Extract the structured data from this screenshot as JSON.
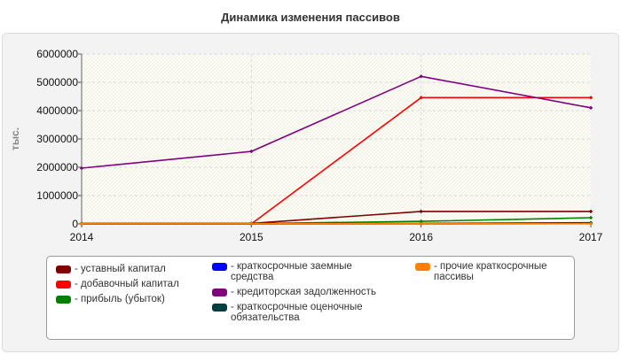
{
  "chart_data": {
    "type": "line",
    "title": "Динамика изменения пассивов",
    "ylabel": "тыс.",
    "xlabel": "",
    "x": [
      "2014",
      "2015",
      "2016",
      "2017"
    ],
    "y_ticks": [
      "0",
      "1000000",
      "2000000",
      "3000000",
      "4000000",
      "5000000",
      "6000000"
    ],
    "ylim": [
      0,
      6000000
    ],
    "grid": true,
    "legend_position": "bottom",
    "series": [
      {
        "name": "- уставный капитал",
        "color": "#800000",
        "values": [
          20000,
          20000,
          440000,
          440000
        ]
      },
      {
        "name": "- добавочный капитал",
        "color": "#ff0000",
        "values": [
          0,
          0,
          4460000,
          4460000
        ]
      },
      {
        "name": "- прибыль (убыток)",
        "color": "#008000",
        "values": [
          10000,
          10000,
          90000,
          220000
        ]
      },
      {
        "name": "- краткосрочные заемные средства",
        "color": "#0000ff",
        "values": [
          0,
          0,
          0,
          10000
        ]
      },
      {
        "name": "- кредиторская задолженность",
        "color": "#800080",
        "values": [
          1970000,
          2560000,
          5210000,
          4100000
        ]
      },
      {
        "name": "- краткосрочные оценочные обязательства",
        "color": "#004040",
        "values": [
          0,
          0,
          20000,
          40000
        ]
      },
      {
        "name": "- прочие краткосрочные пассивы",
        "color": "#ff8000",
        "values": [
          5000,
          5000,
          5000,
          5000
        ]
      }
    ]
  }
}
